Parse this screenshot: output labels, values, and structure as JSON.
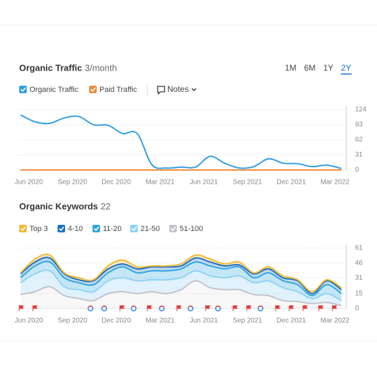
{
  "ui": {
    "periods": [
      "1M",
      "6M",
      "1Y",
      "2Y"
    ],
    "active_period": "2Y",
    "notes": "Notes"
  },
  "chart_data": [
    {
      "type": "line",
      "title": "Organic Traffic",
      "subtitle": "3/month",
      "categories": [
        "Jun 2020",
        null,
        null,
        "Sep 2020",
        null,
        null,
        "Dec 2020",
        null,
        null,
        "Mar 2021",
        null,
        null,
        "Jun 2021",
        null,
        null,
        "Sep 2021",
        null,
        null,
        "Dec 2021",
        null,
        null,
        "Mar 2022",
        null
      ],
      "series": [
        {
          "name": "Organic Traffic",
          "color": "#2f9ee6",
          "values": [
            113,
            99,
            96,
            107,
            110,
            93,
            92,
            75,
            75,
            11,
            4,
            6,
            6,
            28,
            14,
            4,
            7,
            23,
            14,
            13,
            7,
            10,
            3
          ]
        },
        {
          "name": "Paid Traffic",
          "color": "#f08c3a",
          "values": [
            0,
            0,
            0,
            0,
            0,
            0,
            0,
            0,
            0,
            0,
            0,
            0,
            0,
            0,
            0,
            0,
            0,
            0,
            0,
            0,
            0,
            0,
            0
          ]
        }
      ],
      "ylim": [
        0,
        124
      ],
      "yticks": [
        0,
        31,
        62,
        93,
        124
      ],
      "grid": true
    },
    {
      "type": "area",
      "stacked": true,
      "title": "Organic Keywords",
      "subtitle": "22",
      "categories": [
        "Jun 2020",
        null,
        null,
        "Sep 2020",
        null,
        null,
        "Dec 2020",
        null,
        null,
        "Mar 2021",
        null,
        null,
        "Jun 2021",
        null,
        null,
        "Sep 2021",
        null,
        null,
        "Dec 2021",
        null,
        null,
        "Mar 2022",
        null
      ],
      "series": [
        {
          "name": "Top 3",
          "color": "#f5b82e",
          "values": [
            1,
            3,
            3,
            1,
            2,
            1,
            3,
            4,
            2,
            1,
            1,
            2,
            3,
            3,
            2,
            3,
            1,
            2,
            2,
            1,
            2,
            1,
            2
          ]
        },
        {
          "name": "4-10",
          "color": "#1a6fc4",
          "values": [
            4,
            4,
            4,
            4,
            3,
            4,
            4,
            3,
            4,
            4,
            4,
            3,
            4,
            4,
            3,
            2,
            4,
            4,
            3,
            4,
            2,
            4,
            4
          ]
        },
        {
          "name": "11-20",
          "color": "#2ea7e0",
          "values": [
            5,
            8,
            9,
            9,
            7,
            7,
            8,
            11,
            8,
            9,
            9,
            9,
            9,
            10,
            9,
            9,
            5,
            8,
            7,
            7,
            3,
            9,
            7
          ]
        },
        {
          "name": "21-50",
          "color": "#8fd2f5",
          "values": [
            12,
            18,
            16,
            9,
            9,
            9,
            13,
            14,
            13,
            12,
            14,
            12,
            10,
            12,
            12,
            14,
            12,
            15,
            13,
            10,
            5,
            9,
            5
          ]
        },
        {
          "name": "51-100",
          "color": "#c3c3cc",
          "values": [
            14,
            17,
            22,
            13,
            10,
            8,
            15,
            17,
            15,
            17,
            15,
            19,
            28,
            21,
            19,
            19,
            14,
            13,
            8,
            7,
            5,
            6,
            3
          ]
        }
      ],
      "ylim": [
        0,
        61
      ],
      "yticks": [
        0,
        15,
        31,
        46,
        61
      ],
      "grid": true
    }
  ]
}
